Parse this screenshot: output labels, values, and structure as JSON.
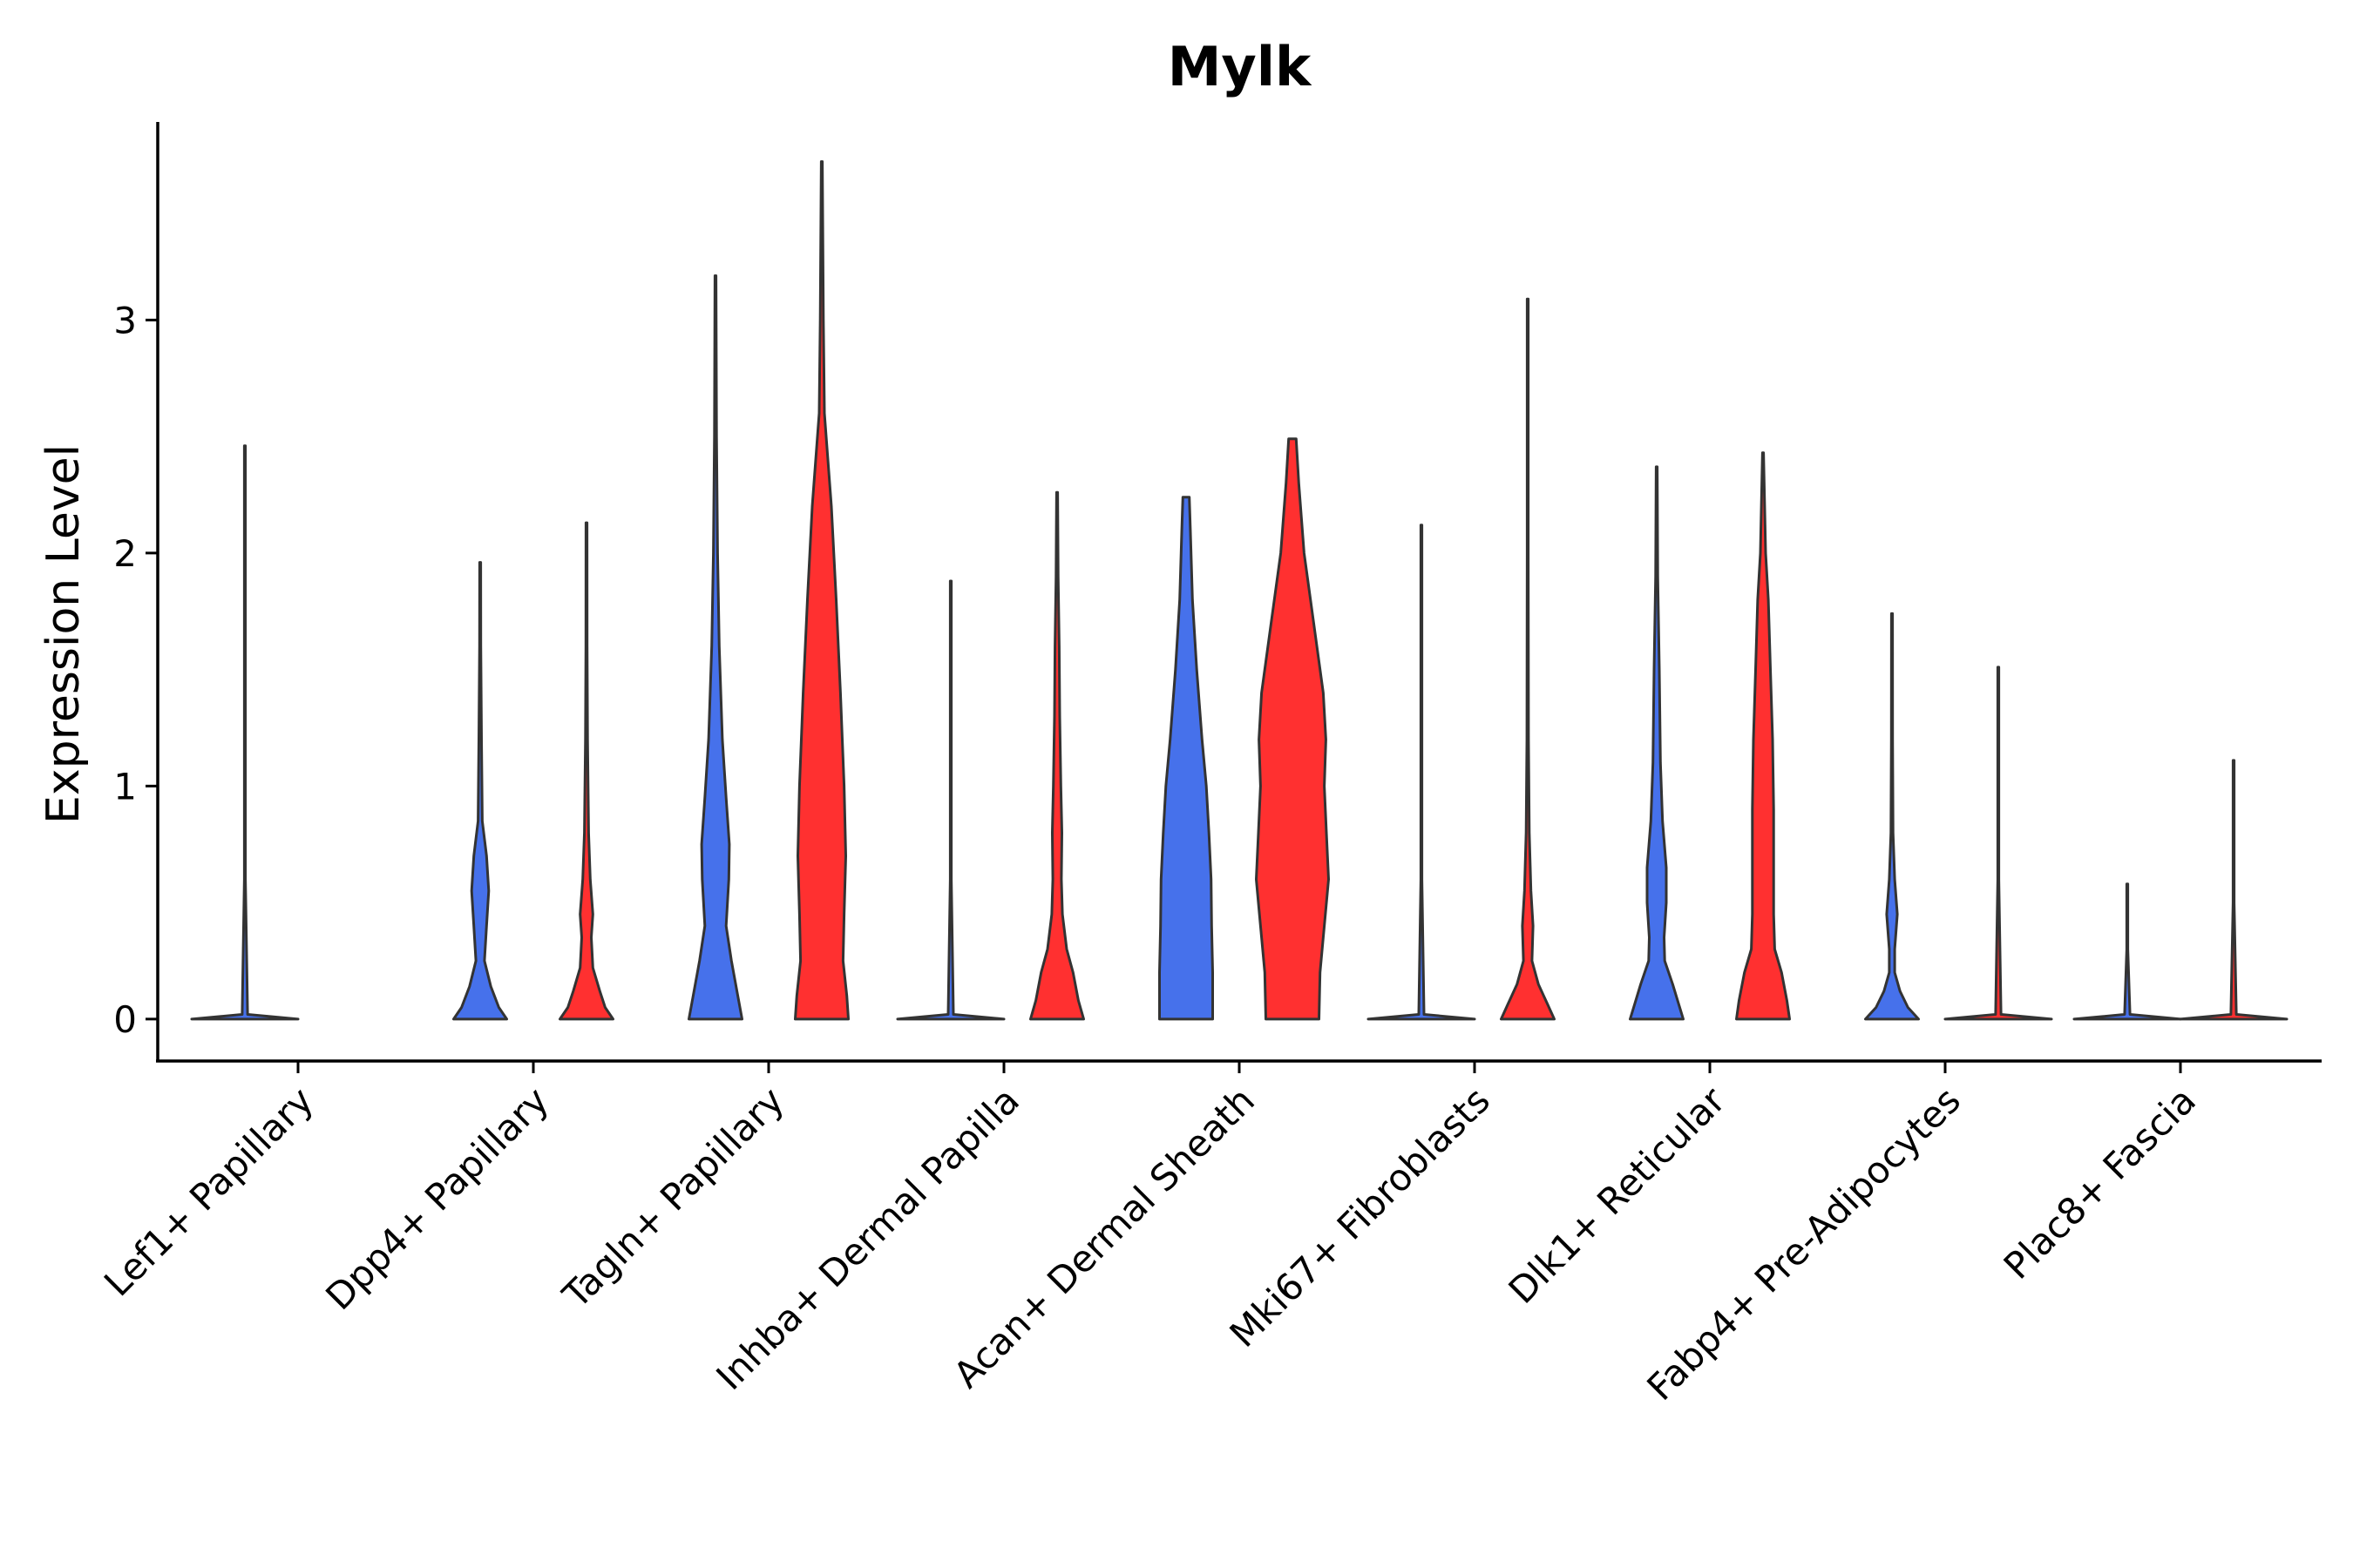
{
  "chart_data": {
    "type": "violin",
    "title": "Mylk",
    "ylabel": "Expression Level",
    "xlabel": "",
    "ylim": [
      -0.18,
      3.85
    ],
    "yticks": [
      0,
      1,
      2,
      3
    ],
    "grid": false,
    "legend": "none",
    "colors": {
      "group1": "#4671EB",
      "group2": "#FF3030",
      "outline": "#333333"
    },
    "categories": [
      "Lef1+ Papillary",
      "Dpp4+ Papillary",
      "Tagln+ Papillary",
      "Inhba+ Dermal Papilla",
      "Acan+ Dermal Sheath",
      "Mki67+ Fibroblasts",
      "Dlk1+ Reticular",
      "Fabp4+ Pre-Adipocytes",
      "Plac8+ Fascia"
    ],
    "violins": [
      {
        "category": 0,
        "group": 1,
        "max": 2.46,
        "profile": [
          [
            0,
            1.0
          ],
          [
            0.02,
            0.05
          ],
          [
            0.6,
            0.01
          ],
          [
            2.46,
            0.01
          ]
        ]
      },
      {
        "category": 1,
        "group": 1,
        "max": 1.96,
        "profile": [
          [
            0,
            0.5
          ],
          [
            0.05,
            0.35
          ],
          [
            0.14,
            0.2
          ],
          [
            0.25,
            0.08
          ],
          [
            0.4,
            0.12
          ],
          [
            0.55,
            0.16
          ],
          [
            0.7,
            0.12
          ],
          [
            0.85,
            0.04
          ],
          [
            1.2,
            0.025
          ],
          [
            1.6,
            0.012
          ],
          [
            1.96,
            0.01
          ]
        ]
      },
      {
        "category": 1,
        "group": 2,
        "max": 2.13,
        "profile": [
          [
            0,
            0.5
          ],
          [
            0.05,
            0.35
          ],
          [
            0.12,
            0.25
          ],
          [
            0.22,
            0.12
          ],
          [
            0.35,
            0.09
          ],
          [
            0.45,
            0.12
          ],
          [
            0.6,
            0.07
          ],
          [
            0.8,
            0.04
          ],
          [
            1.2,
            0.02
          ],
          [
            1.6,
            0.012
          ],
          [
            2.13,
            0.01
          ]
        ]
      },
      {
        "category": 2,
        "group": 1,
        "max": 3.19,
        "profile": [
          [
            0,
            0.5
          ],
          [
            0.1,
            0.42
          ],
          [
            0.25,
            0.3
          ],
          [
            0.4,
            0.2
          ],
          [
            0.6,
            0.25
          ],
          [
            0.75,
            0.26
          ],
          [
            0.95,
            0.2
          ],
          [
            1.2,
            0.13
          ],
          [
            1.6,
            0.07
          ],
          [
            2.0,
            0.04
          ],
          [
            2.5,
            0.02
          ],
          [
            3.19,
            0.01
          ]
        ]
      },
      {
        "category": 2,
        "group": 2,
        "max": 3.68,
        "profile": [
          [
            0,
            0.5
          ],
          [
            0.1,
            0.47
          ],
          [
            0.25,
            0.4
          ],
          [
            0.45,
            0.42
          ],
          [
            0.7,
            0.45
          ],
          [
            1.0,
            0.42
          ],
          [
            1.4,
            0.35
          ],
          [
            1.8,
            0.27
          ],
          [
            2.2,
            0.18
          ],
          [
            2.6,
            0.05
          ],
          [
            3.0,
            0.03
          ],
          [
            3.68,
            0.01
          ]
        ]
      },
      {
        "category": 3,
        "group": 1,
        "max": 1.88,
        "profile": [
          [
            0,
            1.0
          ],
          [
            0.02,
            0.05
          ],
          [
            0.6,
            0.01
          ],
          [
            1.88,
            0.01
          ]
        ]
      },
      {
        "category": 3,
        "group": 2,
        "max": 2.26,
        "profile": [
          [
            0,
            0.5
          ],
          [
            0.08,
            0.4
          ],
          [
            0.2,
            0.3
          ],
          [
            0.3,
            0.18
          ],
          [
            0.45,
            0.1
          ],
          [
            0.6,
            0.08
          ],
          [
            0.8,
            0.09
          ],
          [
            1.0,
            0.07
          ],
          [
            1.3,
            0.05
          ],
          [
            1.6,
            0.04
          ],
          [
            1.9,
            0.02
          ],
          [
            2.26,
            0.01
          ]
        ]
      },
      {
        "category": 4,
        "group": 1,
        "max": 2.24,
        "profile": [
          [
            0,
            0.5
          ],
          [
            0.2,
            0.5
          ],
          [
            0.4,
            0.48
          ],
          [
            0.6,
            0.47
          ],
          [
            0.8,
            0.43
          ],
          [
            1.0,
            0.38
          ],
          [
            1.2,
            0.3
          ],
          [
            1.5,
            0.2
          ],
          [
            1.8,
            0.12
          ],
          [
            2.1,
            0.08
          ],
          [
            2.24,
            0.06
          ]
        ]
      },
      {
        "category": 4,
        "group": 2,
        "max": 2.49,
        "profile": [
          [
            0,
            0.5
          ],
          [
            0.2,
            0.52
          ],
          [
            0.4,
            0.6
          ],
          [
            0.6,
            0.68
          ],
          [
            0.8,
            0.64
          ],
          [
            1.0,
            0.6
          ],
          [
            1.2,
            0.63
          ],
          [
            1.4,
            0.58
          ],
          [
            1.7,
            0.4
          ],
          [
            2.0,
            0.22
          ],
          [
            2.3,
            0.12
          ],
          [
            2.49,
            0.07
          ]
        ]
      },
      {
        "category": 5,
        "group": 1,
        "max": 2.12,
        "profile": [
          [
            0,
            1.0
          ],
          [
            0.02,
            0.05
          ],
          [
            0.6,
            0.01
          ],
          [
            2.12,
            0.01
          ]
        ]
      },
      {
        "category": 5,
        "group": 2,
        "max": 3.09,
        "profile": [
          [
            0,
            0.5
          ],
          [
            0.06,
            0.38
          ],
          [
            0.15,
            0.2
          ],
          [
            0.25,
            0.08
          ],
          [
            0.4,
            0.1
          ],
          [
            0.55,
            0.06
          ],
          [
            0.8,
            0.03
          ],
          [
            1.2,
            0.015
          ],
          [
            2.0,
            0.01
          ],
          [
            3.09,
            0.01
          ]
        ]
      },
      {
        "category": 6,
        "group": 1,
        "max": 2.37,
        "profile": [
          [
            0,
            0.5
          ],
          [
            0.06,
            0.42
          ],
          [
            0.15,
            0.3
          ],
          [
            0.25,
            0.15
          ],
          [
            0.35,
            0.14
          ],
          [
            0.5,
            0.18
          ],
          [
            0.65,
            0.18
          ],
          [
            0.85,
            0.11
          ],
          [
            1.1,
            0.07
          ],
          [
            1.5,
            0.05
          ],
          [
            1.9,
            0.02
          ],
          [
            2.37,
            0.01
          ]
        ]
      },
      {
        "category": 6,
        "group": 2,
        "max": 2.43,
        "profile": [
          [
            0,
            0.5
          ],
          [
            0.08,
            0.45
          ],
          [
            0.2,
            0.35
          ],
          [
            0.3,
            0.22
          ],
          [
            0.45,
            0.2
          ],
          [
            0.6,
            0.2
          ],
          [
            0.9,
            0.2
          ],
          [
            1.2,
            0.18
          ],
          [
            1.5,
            0.14
          ],
          [
            1.8,
            0.1
          ],
          [
            2.0,
            0.05
          ],
          [
            2.43,
            0.01
          ]
        ]
      },
      {
        "category": 7,
        "group": 1,
        "max": 1.74,
        "profile": [
          [
            0,
            0.5
          ],
          [
            0.05,
            0.3
          ],
          [
            0.12,
            0.15
          ],
          [
            0.2,
            0.05
          ],
          [
            0.3,
            0.05
          ],
          [
            0.45,
            0.1
          ],
          [
            0.6,
            0.05
          ],
          [
            0.8,
            0.02
          ],
          [
            1.2,
            0.012
          ],
          [
            1.74,
            0.01
          ]
        ]
      },
      {
        "category": 7,
        "group": 2,
        "max": 1.51,
        "profile": [
          [
            0,
            1.0
          ],
          [
            0.02,
            0.05
          ],
          [
            0.6,
            0.01
          ],
          [
            1.51,
            0.01
          ]
        ]
      },
      {
        "category": 8,
        "group": 1,
        "max": 0.58,
        "profile": [
          [
            0,
            1.0
          ],
          [
            0.02,
            0.05
          ],
          [
            0.3,
            0.01
          ],
          [
            0.58,
            0.01
          ]
        ]
      },
      {
        "category": 8,
        "group": 2,
        "max": 1.11,
        "profile": [
          [
            0,
            1.0
          ],
          [
            0.02,
            0.05
          ],
          [
            0.5,
            0.01
          ],
          [
            1.11,
            0.01
          ]
        ]
      }
    ]
  }
}
